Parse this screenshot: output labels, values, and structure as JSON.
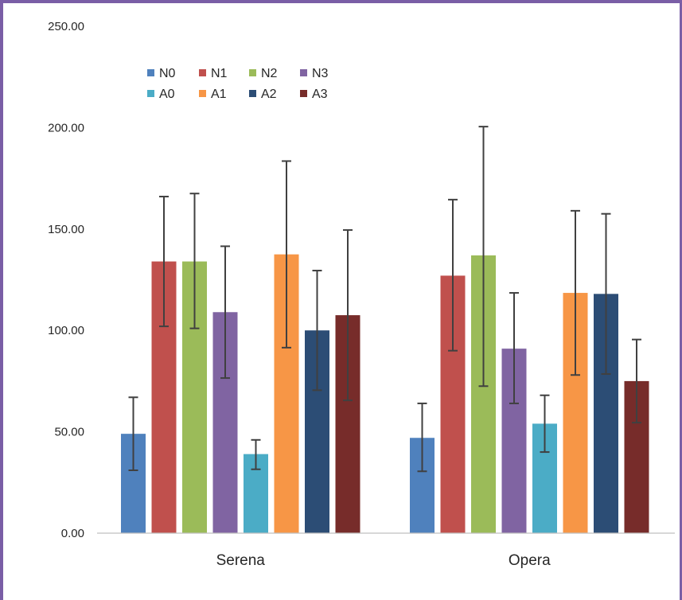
{
  "chart_data": {
    "type": "bar",
    "categories": [
      "Serena",
      "Opera"
    ],
    "series": [
      {
        "name": "N0",
        "color": "#4f81bd",
        "values": [
          49.0,
          47.0
        ],
        "err_low": [
          31.0,
          30.5
        ],
        "err_high": [
          67.0,
          64.0
        ]
      },
      {
        "name": "N1",
        "color": "#c0504d",
        "values": [
          134.0,
          127.0
        ],
        "err_low": [
          102.0,
          90.0
        ],
        "err_high": [
          166.0,
          164.5
        ]
      },
      {
        "name": "N2",
        "color": "#9bbb59",
        "values": [
          134.0,
          137.0
        ],
        "err_low": [
          101.0,
          72.5
        ],
        "err_high": [
          167.5,
          200.5
        ]
      },
      {
        "name": "N3",
        "color": "#8064a2",
        "values": [
          109.0,
          91.0
        ],
        "err_low": [
          76.5,
          64.0
        ],
        "err_high": [
          141.5,
          118.5
        ]
      },
      {
        "name": "A0",
        "color": "#4bacc6",
        "values": [
          39.0,
          54.0
        ],
        "err_low": [
          31.5,
          40.0
        ],
        "err_high": [
          46.0,
          68.0
        ]
      },
      {
        "name": "A1",
        "color": "#f79646",
        "values": [
          137.5,
          118.5
        ],
        "err_low": [
          91.5,
          78.0
        ],
        "err_high": [
          183.5,
          159.0
        ]
      },
      {
        "name": "A2",
        "color": "#2c4d75",
        "values": [
          100.0,
          118.0
        ],
        "err_low": [
          70.5,
          78.5
        ],
        "err_high": [
          129.5,
          157.5
        ]
      },
      {
        "name": "A3",
        "color": "#772c2a",
        "values": [
          107.5,
          75.0
        ],
        "err_low": [
          65.5,
          54.5
        ],
        "err_high": [
          149.5,
          95.5
        ]
      }
    ],
    "ylim": [
      0,
      250
    ],
    "yticks": [
      "0.00",
      "50.00",
      "100.00",
      "150.00",
      "200.00",
      "250.00"
    ],
    "ytick_values": [
      0,
      50,
      100,
      150,
      200,
      250
    ],
    "grid": false,
    "legend_position": "top-left",
    "error_bars": true
  }
}
